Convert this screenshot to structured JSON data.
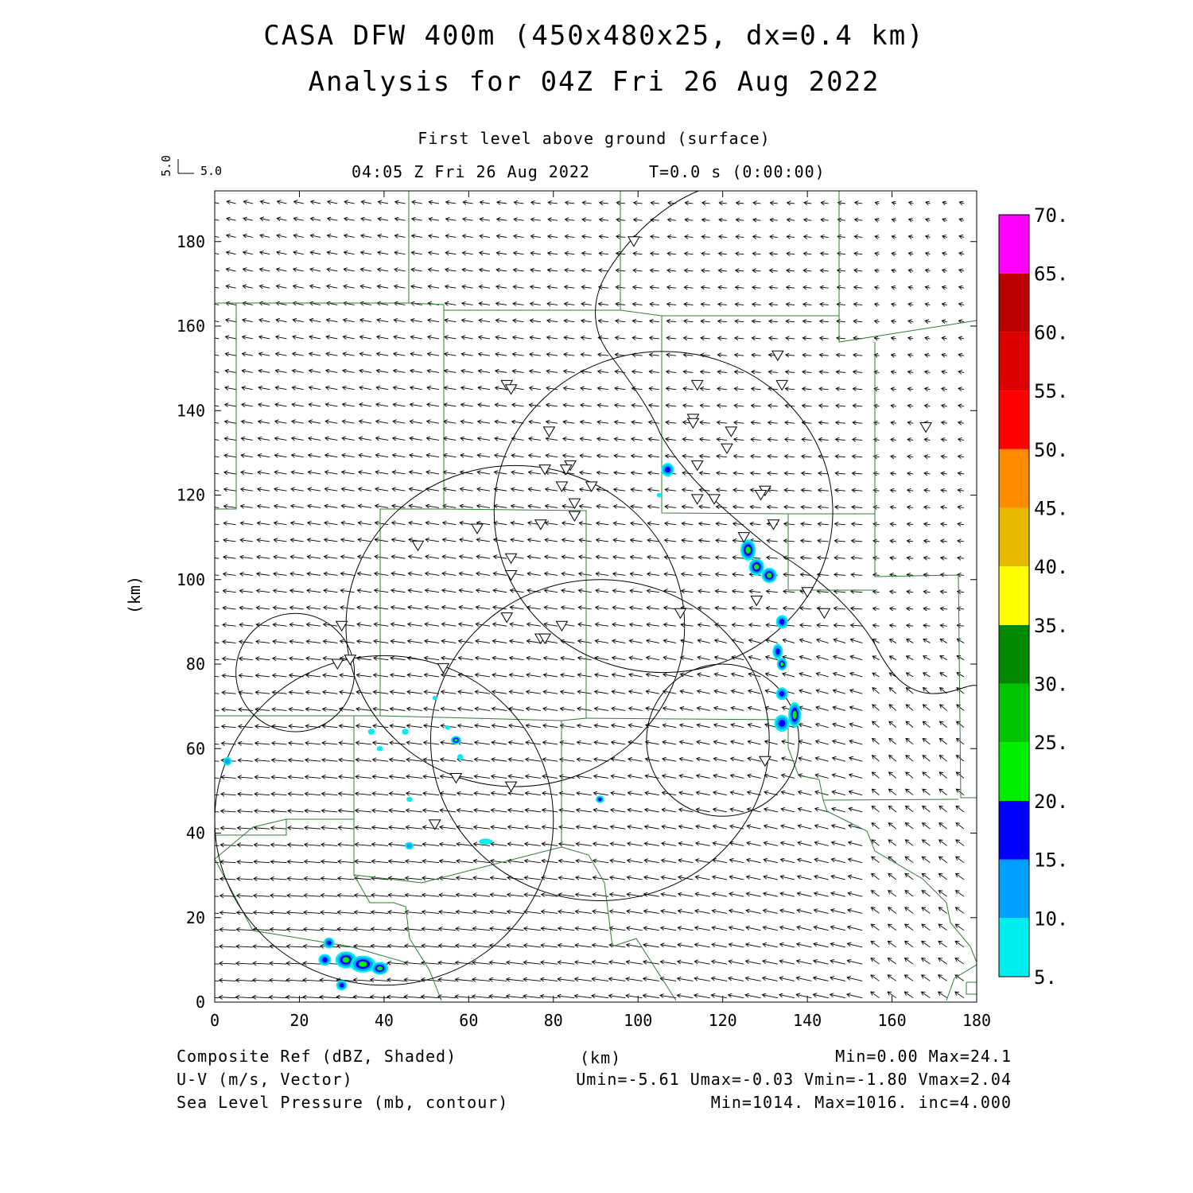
{
  "header": {
    "title_line1": "CASA DFW 400m (450x480x25, dx=0.4 km)",
    "title_line2": "Analysis for 04Z Fri 26 Aug 2022",
    "level": "First level above ground (surface)",
    "valid_time": "04:05 Z Fri 26 Aug 2022",
    "elapsed": "T=0.0 s (0:00:00)",
    "vector_scale_x": "5.0",
    "vector_scale_y": "5.0"
  },
  "footer": {
    "field1": "Composite Ref (dBZ, Shaded)",
    "field2": "U-V (m/s, Vector)",
    "field3": "Sea Level Pressure (mb, contour)",
    "xunit": "(km)",
    "stats1": "Min=0.00 Max=24.1",
    "stats2": "Umin=-5.61 Umax=-0.03 Vmin=-1.80 Vmax=2.04",
    "stats3": "Min=1014. Max=1016. inc=4.000"
  },
  "chart_data": {
    "type": "heatmap",
    "xlabel": "",
    "ylabel": "(km)",
    "xlim": [
      0,
      180
    ],
    "ylim": [
      0,
      192
    ],
    "x_ticks": [
      0,
      20,
      40,
      60,
      80,
      100,
      120,
      140,
      160,
      180
    ],
    "y_ticks": [
      0,
      20,
      40,
      60,
      80,
      100,
      120,
      140,
      160,
      180
    ],
    "colorbar": {
      "levels": [
        "5.",
        "10.",
        "15.",
        "20.",
        "25.",
        "30.",
        "35.",
        "40.",
        "45.",
        "50.",
        "55.",
        "60.",
        "65.",
        "70."
      ],
      "colors": [
        "#00eeee",
        "#00a0ff",
        "#0000ff",
        "#00ee00",
        "#00c400",
        "#008800",
        "#ffff00",
        "#e6b800",
        "#ff8c00",
        "#ff0000",
        "#dd0000",
        "#bb0000",
        "#ff00ff"
      ]
    },
    "reflectivity_cells": [
      {
        "x": 107,
        "y": 126,
        "rx": 1.5,
        "ry": 1.6,
        "dbz": 17
      },
      {
        "x": 105,
        "y": 120,
        "rx": 0.6,
        "ry": 0.5,
        "dbz": 8
      },
      {
        "x": 126,
        "y": 107,
        "rx": 1.8,
        "ry": 2.5,
        "dbz": 22
      },
      {
        "x": 128,
        "y": 103,
        "rx": 1.8,
        "ry": 2.0,
        "dbz": 22
      },
      {
        "x": 131,
        "y": 101,
        "rx": 1.8,
        "ry": 1.8,
        "dbz": 21
      },
      {
        "x": 134,
        "y": 90,
        "rx": 1.4,
        "ry": 1.6,
        "dbz": 17
      },
      {
        "x": 133,
        "y": 83,
        "rx": 1.2,
        "ry": 1.8,
        "dbz": 17
      },
      {
        "x": 134,
        "y": 80,
        "rx": 1.2,
        "ry": 1.5,
        "dbz": 21
      },
      {
        "x": 134,
        "y": 73,
        "rx": 1.4,
        "ry": 1.5,
        "dbz": 17
      },
      {
        "x": 134,
        "y": 66,
        "rx": 1.8,
        "ry": 2.0,
        "dbz": 17
      },
      {
        "x": 137,
        "y": 68,
        "rx": 1.5,
        "ry": 3.0,
        "dbz": 22
      },
      {
        "x": 3,
        "y": 57,
        "rx": 1.0,
        "ry": 1.0,
        "dbz": 14
      },
      {
        "x": 57,
        "y": 62,
        "rx": 1.2,
        "ry": 1.0,
        "dbz": 21
      },
      {
        "x": 37,
        "y": 64,
        "rx": 0.8,
        "ry": 0.7,
        "dbz": 9
      },
      {
        "x": 45,
        "y": 64,
        "rx": 0.8,
        "ry": 0.7,
        "dbz": 9
      },
      {
        "x": 39,
        "y": 60,
        "rx": 0.7,
        "ry": 0.6,
        "dbz": 8
      },
      {
        "x": 58,
        "y": 58,
        "rx": 0.7,
        "ry": 0.7,
        "dbz": 8
      },
      {
        "x": 55,
        "y": 65,
        "rx": 0.6,
        "ry": 0.5,
        "dbz": 7
      },
      {
        "x": 52,
        "y": 72,
        "rx": 0.6,
        "ry": 0.5,
        "dbz": 7
      },
      {
        "x": 46,
        "y": 48,
        "rx": 0.7,
        "ry": 0.6,
        "dbz": 8
      },
      {
        "x": 46,
        "y": 37,
        "rx": 1.0,
        "ry": 0.9,
        "dbz": 14
      },
      {
        "x": 64,
        "y": 38,
        "rx": 1.6,
        "ry": 0.7,
        "dbz": 9
      },
      {
        "x": 91,
        "y": 48,
        "rx": 1.0,
        "ry": 0.9,
        "dbz": 17
      },
      {
        "x": 27,
        "y": 14,
        "rx": 1.3,
        "ry": 1.3,
        "dbz": 16
      },
      {
        "x": 26,
        "y": 10,
        "rx": 1.5,
        "ry": 1.4,
        "dbz": 16
      },
      {
        "x": 31,
        "y": 10,
        "rx": 2.5,
        "ry": 2.0,
        "dbz": 22
      },
      {
        "x": 35,
        "y": 9,
        "rx": 3.0,
        "ry": 2.0,
        "dbz": 24
      },
      {
        "x": 39,
        "y": 8,
        "rx": 2.0,
        "ry": 1.5,
        "dbz": 22
      },
      {
        "x": 30,
        "y": 4,
        "rx": 1.3,
        "ry": 1.2,
        "dbz": 16
      }
    ],
    "pressure_contours_km": [
      {
        "cx": 106,
        "cy": 116,
        "rx": 40,
        "ry": 38
      },
      {
        "cx": 71,
        "cy": 89,
        "rx": 40,
        "ry": 38
      },
      {
        "cx": 91,
        "cy": 62,
        "rx": 40,
        "ry": 38
      },
      {
        "cx": 40,
        "cy": 43,
        "rx": 40,
        "ry": 39
      },
      {
        "cx": 19,
        "cy": 78,
        "rx": 14,
        "ry": 14
      },
      {
        "cx": 120,
        "cy": 62,
        "rx": 18,
        "ry": 18
      }
    ],
    "radar_sites_km": [
      [
        99,
        180
      ],
      [
        133,
        153
      ],
      [
        134,
        146
      ],
      [
        69,
        146
      ],
      [
        70,
        145
      ],
      [
        114,
        146
      ],
      [
        113,
        138
      ],
      [
        113,
        137
      ],
      [
        79,
        135
      ],
      [
        122,
        135
      ],
      [
        121,
        131
      ],
      [
        168,
        136
      ],
      [
        114,
        127
      ],
      [
        84,
        127
      ],
      [
        78,
        126
      ],
      [
        83,
        126
      ],
      [
        89,
        122
      ],
      [
        82,
        122
      ],
      [
        130,
        121
      ],
      [
        129,
        120
      ],
      [
        114,
        119
      ],
      [
        118,
        119
      ],
      [
        85,
        118
      ],
      [
        85,
        115
      ],
      [
        125,
        110
      ],
      [
        132,
        113
      ],
      [
        77,
        113
      ],
      [
        62,
        112
      ],
      [
        48,
        108
      ],
      [
        70,
        105
      ],
      [
        70,
        101
      ],
      [
        128,
        95
      ],
      [
        140,
        97
      ],
      [
        144,
        92
      ],
      [
        110,
        92
      ],
      [
        69,
        91
      ],
      [
        77,
        86
      ],
      [
        78,
        86
      ],
      [
        82,
        89
      ],
      [
        30,
        89
      ],
      [
        32,
        81
      ],
      [
        29,
        80
      ],
      [
        54,
        79
      ],
      [
        57,
        53
      ],
      [
        70,
        51
      ],
      [
        52,
        42
      ],
      [
        130,
        57
      ]
    ],
    "wind_vectors": {
      "spacing_km": 4,
      "u_range": [
        -5.61,
        -0.03
      ],
      "v_range": [
        -1.8,
        2.04
      ],
      "regime": "easterly flow: ~-3 m/s north, ~-5 m/s south; weak southerly component in south-east"
    }
  }
}
